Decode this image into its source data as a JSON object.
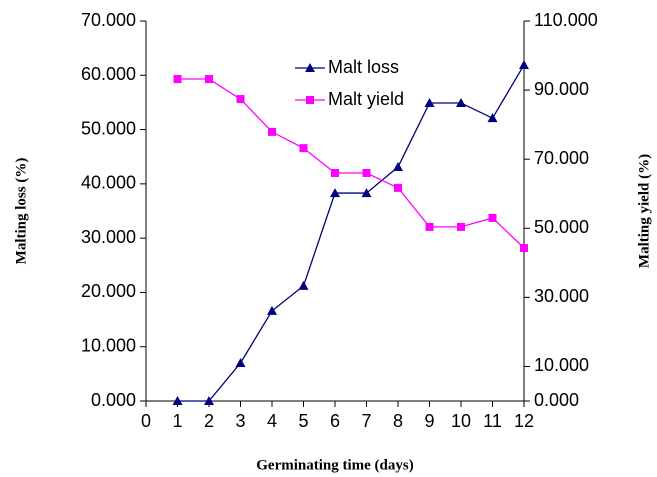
{
  "chart_data": {
    "type": "line",
    "x_label": "Germinating time (days)",
    "y_label": "Malting loss (%)",
    "y2_label": "Malting yield (%)",
    "x": [
      1,
      2,
      3,
      4,
      5,
      6,
      7,
      8,
      9,
      10,
      11,
      12
    ],
    "series": [
      {
        "name": "Malt loss",
        "color": "#000080",
        "marker": "triangle",
        "axis": "y",
        "values": [
          0,
          0,
          7.0,
          16.6,
          21.2,
          38.3,
          38.3,
          43.1,
          54.9,
          54.9,
          52.1,
          61.9
        ]
      },
      {
        "name": "Malt yield",
        "color": "#ff00ff",
        "marker": "square",
        "axis": "y2",
        "values": [
          93.2,
          93.2,
          87.4,
          77.9,
          73.2,
          66.0,
          66.0,
          61.7,
          50.4,
          50.4,
          53.0,
          44.3
        ]
      }
    ],
    "xlim": [
      0,
      12
    ],
    "xticks": [
      0,
      1,
      2,
      3,
      4,
      5,
      6,
      7,
      8,
      9,
      10,
      11,
      12
    ],
    "ylim": [
      0,
      70
    ],
    "yticks": [
      {
        "value": 0,
        "label": "0.000"
      },
      {
        "value": 10,
        "label": "10.000"
      },
      {
        "value": 20,
        "label": "20.000"
      },
      {
        "value": 30,
        "label": "30.000"
      },
      {
        "value": 40,
        "label": "40.000"
      },
      {
        "value": 50,
        "label": "50.000"
      },
      {
        "value": 60,
        "label": "60.000"
      },
      {
        "value": 70,
        "label": "70.000"
      }
    ],
    "y2lim": [
      0,
      110
    ],
    "y2ticks": [
      {
        "value": 0,
        "label": "0.000"
      },
      {
        "value": 10,
        "label": "10.000"
      },
      {
        "value": 30,
        "label": "30.000"
      },
      {
        "value": 50,
        "label": "50.000"
      },
      {
        "value": 70,
        "label": "70.000"
      },
      {
        "value": 90,
        "label": "90.000"
      },
      {
        "value": 110,
        "label": "110.000"
      }
    ],
    "grid": false
  }
}
